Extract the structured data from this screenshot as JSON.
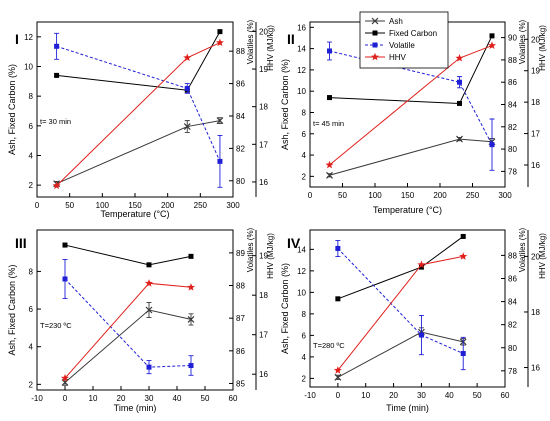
{
  "figure": {
    "legend_entries": [
      "Ash",
      "Fixed Carbon",
      "Volatile",
      "HHV"
    ],
    "legend_placement": "top-center (inside panel II)"
  },
  "colors": {
    "ash": "#3a3a3a",
    "fixed_carbon": "#000000",
    "volatile": "#1f1fd6",
    "hhv": "#e0201c",
    "axis": "#000000",
    "right_axis_volatile": "#1f1fd6"
  },
  "icons": {
    "ash_marker": "x-marker",
    "fixed_carbon_marker": "square-marker",
    "volatile_marker": "square-marker",
    "hhv_marker": "star-marker"
  },
  "chart_data": [
    {
      "type": "line",
      "panel": "I",
      "annotation": "t= 30 min",
      "xlabel": "Temperature (°C)",
      "ylabel_left": "Ash, Fixed Carbon (%)",
      "ylabel_vol": "Volatiles (%)",
      "ylabel_hhv": "HHV (MJ/kg)",
      "x": [
        30,
        230,
        280
      ],
      "xlim": [
        0,
        300
      ],
      "xticks": [
        0,
        50,
        100,
        150,
        200,
        250,
        300
      ],
      "ylim_left": [
        1.2,
        13.0
      ],
      "yticks_left": [
        2,
        4,
        6,
        8,
        10,
        12
      ],
      "ylim_vol": [
        79.0,
        89.8
      ],
      "yticks_vol": [
        80,
        82,
        84,
        86,
        88
      ],
      "ylim_hhv": [
        15.6,
        20.25
      ],
      "yticks_hhv": [
        16,
        17,
        18,
        19,
        20
      ],
      "series": [
        {
          "key": "ash",
          "name": "Ash",
          "axis": "left",
          "values": [
            2.1,
            5.95,
            6.35
          ],
          "err": [
            0.15,
            0.4,
            0.2
          ]
        },
        {
          "key": "fixed_carbon",
          "name": "Fixed Carbon",
          "axis": "left",
          "values": [
            9.4,
            8.4,
            12.35
          ],
          "err": [
            0,
            0,
            0
          ]
        },
        {
          "key": "volatile",
          "name": "Volatile",
          "axis": "vol",
          "values": [
            88.3,
            85.7,
            81.2
          ],
          "err": [
            0.8,
            0.3,
            1.6
          ]
        },
        {
          "key": "hhv",
          "name": "HHV",
          "axis": "hhv",
          "values": [
            15.9,
            19.3,
            19.7
          ],
          "err": [
            0,
            0,
            0
          ]
        }
      ]
    },
    {
      "type": "line",
      "panel": "II",
      "annotation": "t= 45 min",
      "xlabel": "Temperature (°C)",
      "ylabel_left": "Ash, Fixed Carbon (%)",
      "ylabel_vol": "Volatiles (%)",
      "ylabel_hhv": "HHV (MJ/kg)",
      "x": [
        30,
        230,
        280
      ],
      "xlim": [
        0,
        300
      ],
      "xticks": [
        0,
        50,
        100,
        150,
        200,
        250,
        300
      ],
      "ylim_left": [
        1.0,
        16.5
      ],
      "yticks_left": [
        2,
        4,
        6,
        8,
        10,
        12,
        14,
        16
      ],
      "ylim_vol": [
        76.6,
        91.4
      ],
      "yticks_vol": [
        78,
        80,
        82,
        84,
        86,
        88,
        90
      ],
      "ylim_hhv": [
        15.3,
        20.55
      ],
      "yticks_hhv": [
        16,
        17,
        18,
        19,
        20
      ],
      "series": [
        {
          "key": "ash",
          "name": "Ash",
          "axis": "left",
          "values": [
            2.1,
            5.5,
            5.25
          ],
          "err": [
            0.15,
            0.15,
            0.3
          ]
        },
        {
          "key": "fixed_carbon",
          "name": "Fixed Carbon",
          "axis": "left",
          "values": [
            9.4,
            8.85,
            15.2
          ],
          "err": [
            0,
            0,
            0
          ]
        },
        {
          "key": "volatile",
          "name": "Volatile",
          "axis": "vol",
          "values": [
            88.8,
            86.0,
            80.4
          ],
          "err": [
            0.8,
            0.5,
            2.3
          ]
        },
        {
          "key": "hhv",
          "name": "HHV",
          "axis": "hhv",
          "values": [
            16.0,
            19.4,
            19.8
          ],
          "err": [
            0,
            0,
            0
          ]
        }
      ]
    },
    {
      "type": "line",
      "panel": "III",
      "annotation": "T=230 ºC",
      "xlabel": "Time (min)",
      "ylabel_left": "Ash, Fixed Carbon (%)",
      "ylabel_vol": "Volatiles (%)",
      "ylabel_hhv": "HHV (MJ/kg)",
      "x": [
        0,
        30,
        45
      ],
      "xlim": [
        -10,
        60
      ],
      "xticks": [
        -10,
        0,
        10,
        20,
        30,
        40,
        50,
        60
      ],
      "ylim_left": [
        1.7,
        10.2
      ],
      "yticks_left": [
        2,
        4,
        6,
        8
      ],
      "ylim_vol": [
        84.8,
        89.7
      ],
      "yticks_vol": [
        85,
        86,
        87,
        88,
        89
      ],
      "ylim_hhv": [
        15.6,
        19.65
      ],
      "yticks_hhv": [
        16,
        17,
        18,
        19
      ],
      "series": [
        {
          "key": "ash",
          "name": "Ash",
          "axis": "left",
          "values": [
            2.1,
            5.95,
            5.45
          ],
          "err": [
            0.15,
            0.4,
            0.3
          ]
        },
        {
          "key": "fixed_carbon",
          "name": "Fixed Carbon",
          "axis": "left",
          "values": [
            9.4,
            8.35,
            8.8
          ],
          "err": [
            0,
            0,
            0
          ]
        },
        {
          "key": "volatile",
          "name": "Volatile",
          "axis": "vol",
          "values": [
            88.2,
            85.5,
            85.55
          ],
          "err": [
            0.6,
            0.2,
            0.3
          ]
        },
        {
          "key": "hhv",
          "name": "HHV",
          "axis": "hhv",
          "values": [
            15.9,
            18.3,
            18.2
          ],
          "err": [
            0,
            0,
            0
          ]
        }
      ]
    },
    {
      "type": "line",
      "panel": "IV",
      "annotation": "T=280 ºC",
      "xlabel": "Time (min)",
      "ylabel_left": "Ash, Fixed Carbon (%)",
      "ylabel_vol": "Volatiles (%)",
      "ylabel_hhv": "HHV (MJ/kg)",
      "x": [
        0,
        30,
        45
      ],
      "xlim": [
        -10,
        60
      ],
      "xticks": [
        -10,
        0,
        10,
        20,
        30,
        40,
        50,
        60
      ],
      "ylim_left": [
        1.2,
        15.8
      ],
      "yticks_left": [
        2,
        4,
        6,
        8,
        10,
        12,
        14
      ],
      "ylim_vol": [
        76.6,
        90.2
      ],
      "yticks_vol": [
        78,
        80,
        82,
        84,
        86,
        88
      ],
      "ylim_hhv": [
        15.3,
        20.95
      ],
      "yticks_hhv": [
        16,
        18,
        20
      ],
      "series": [
        {
          "key": "ash",
          "name": "Ash",
          "axis": "left",
          "values": [
            2.1,
            6.3,
            5.4
          ],
          "err": [
            0.2,
            0.4,
            0.3
          ]
        },
        {
          "key": "fixed_carbon",
          "name": "Fixed Carbon",
          "axis": "left",
          "values": [
            9.4,
            12.35,
            15.2
          ],
          "err": [
            0,
            0,
            0
          ]
        },
        {
          "key": "volatile",
          "name": "Volatile",
          "axis": "vol",
          "values": [
            88.6,
            81.1,
            79.5
          ],
          "err": [
            0.7,
            1.7,
            1.4
          ]
        },
        {
          "key": "hhv",
          "name": "HHV",
          "axis": "hhv",
          "values": [
            15.9,
            19.7,
            20.0
          ],
          "err": [
            0,
            0,
            0
          ]
        }
      ]
    }
  ]
}
